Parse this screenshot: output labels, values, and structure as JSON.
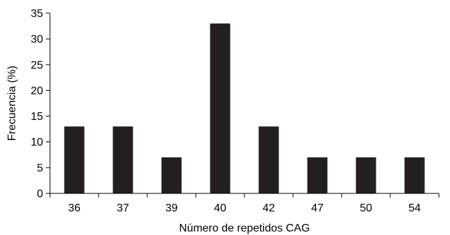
{
  "chart_data": {
    "type": "bar",
    "title": "",
    "xlabel": "Número de repetidos CAG",
    "ylabel": "Frecuencia (%)",
    "categories": [
      "36",
      "37",
      "39",
      "40",
      "42",
      "47",
      "50",
      "54"
    ],
    "values": [
      13,
      13,
      7,
      33,
      13,
      7,
      7,
      7
    ],
    "ylim": [
      0,
      35
    ],
    "yticks": [
      0,
      5,
      10,
      15,
      20,
      25,
      30,
      35
    ],
    "grid": false,
    "legend": "none",
    "bar_color": "#231f20"
  }
}
